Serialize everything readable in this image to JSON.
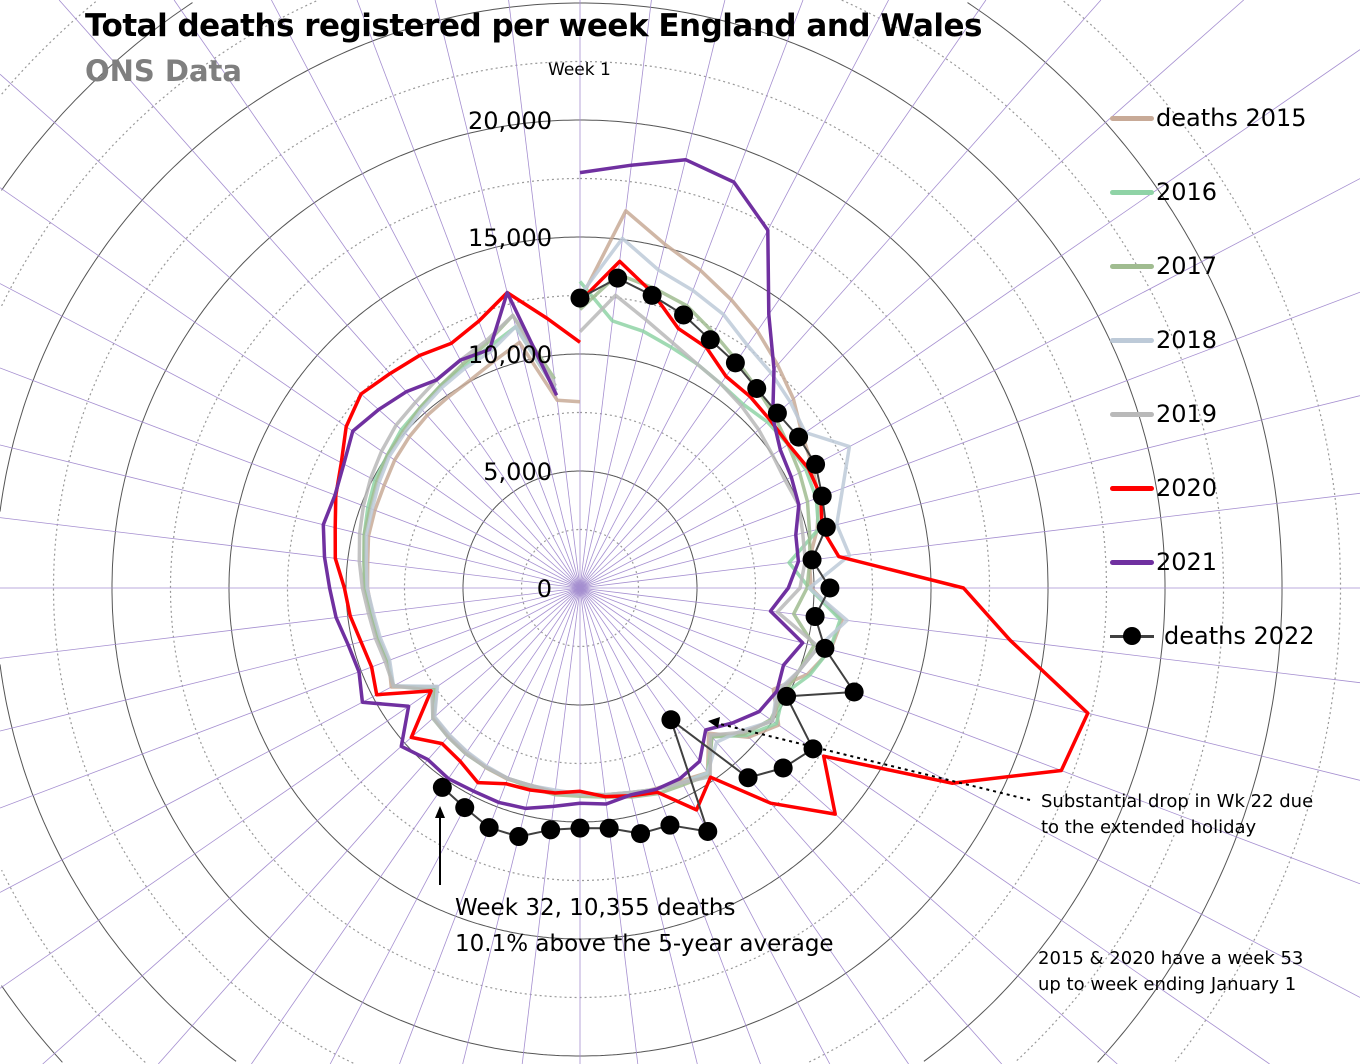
{
  "chart_data": {
    "type": "radar",
    "title": "Total deaths registered per week England and Wales",
    "subtitle": "ONS Data",
    "axis_start_label": "Week 1",
    "radial_ticks": [
      0,
      5000,
      10000,
      15000,
      20000
    ],
    "radial_tick_labels": [
      "0",
      "5,000",
      "10,000",
      "15,000",
      "20,000"
    ],
    "rmax": 20000,
    "categories_count": 52,
    "legend_position": "right",
    "series": [
      {
        "name": "deaths 2015",
        "color": "#c8aa97",
        "marker": false,
        "values": [
          12286,
          16237,
          15134,
          14516,
          13910,
          13345,
          12735,
          12186,
          11539,
          11216,
          10908,
          10439,
          9866,
          9879,
          11281,
          11034,
          10401,
          9329,
          10312,
          9618,
          8296,
          9591,
          9307,
          9163,
          9101,
          8912,
          8765,
          8767,
          8692,
          8741,
          8668,
          8520,
          8426,
          8325,
          7442,
          9106,
          8747,
          8868,
          8942,
          9082,
          9139,
          9311,
          9374,
          9449,
          9622,
          9747,
          9852,
          9918,
          10048,
          10369,
          10811,
          8086,
          7962
        ]
      },
      {
        "name": "2016",
        "color": "#8fd3a6",
        "marker": false,
        "values": [
          13100,
          11500,
          11300,
          11000,
          10800,
          10600,
          10500,
          10700,
          10800,
          10900,
          10800,
          10500,
          9000,
          9800,
          11200,
          11000,
          10500,
          9800,
          10200,
          9500,
          8500,
          9600,
          9400,
          9200,
          9000,
          8900,
          8800,
          8800,
          8700,
          8700,
          8650,
          8600,
          8500,
          8400,
          7600,
          9000,
          8800,
          8900,
          9000,
          9200,
          9300,
          9500,
          9700,
          9900,
          10000,
          10200,
          10300,
          10500,
          10700,
          11000,
          11500,
          8500
        ]
      },
      {
        "name": "2017",
        "color": "#a0bc90",
        "marker": false,
        "values": [
          11900,
          13500,
          13200,
          12900,
          12300,
          11800,
          11400,
          11100,
          10800,
          10600,
          10400,
          10100,
          9900,
          9700,
          9200,
          10300,
          10000,
          9800,
          9900,
          9400,
          8500,
          9700,
          9500,
          9400,
          9200,
          9000,
          8900,
          8900,
          8800,
          8700,
          8650,
          8600,
          8500,
          8350,
          7500,
          9000,
          8800,
          8900,
          9000,
          9200,
          9300,
          9500,
          9600,
          9800,
          10000,
          10100,
          10300,
          10500,
          10800,
          11200,
          12000,
          9000
        ]
      },
      {
        "name": "2018",
        "color": "#bdcad8",
        "marker": false,
        "values": [
          12500,
          15050,
          14000,
          13600,
          13200,
          12600,
          12300,
          12000,
          11700,
          13000,
          12000,
          11300,
          11600,
          9800,
          11500,
          10500,
          10000,
          9500,
          10000,
          9200,
          8800,
          9600,
          9400,
          9200,
          9000,
          8900,
          8800,
          8700,
          8700,
          8700,
          8600,
          8500,
          8400,
          8300,
          7400,
          9000,
          8700,
          8800,
          8900,
          9100,
          9200,
          9400,
          9500,
          9700,
          9900,
          10000,
          10200,
          10400,
          10600,
          10800,
          11500,
          8500
        ]
      },
      {
        "name": "2019",
        "color": "#b9b9b9",
        "marker": false,
        "values": [
          10955,
          12600,
          11800,
          11200,
          10800,
          10600,
          10400,
          10200,
          10000,
          9900,
          10000,
          9800,
          9700,
          9400,
          8500,
          10500,
          10000,
          9600,
          10000,
          9300,
          8400,
          9800,
          9400,
          9200,
          9000,
          8900,
          8800,
          8800,
          8700,
          8700,
          8650,
          8600,
          8500,
          8400,
          7700,
          9000,
          8900,
          9000,
          9100,
          9300,
          9500,
          9700,
          9900,
          10100,
          10300,
          10500,
          10600,
          10800,
          11000,
          11300,
          12000,
          8700
        ]
      },
      {
        "name": "2020",
        "color": "#ff0000",
        "marker": false,
        "values": [
          12254,
          14058,
          12990,
          11856,
          11612,
          10986,
          10944,
          10841,
          10816,
          11019,
          11019,
          10645,
          11141,
          16387,
          18516,
          22351,
          21997,
          17953,
          12657,
          14573,
          12288,
          9824,
          10709,
          9339,
          9140,
          8979,
          8690,
          8823,
          8891,
          8946,
          9392,
          9005,
          8884,
          9631,
          7739,
          9811,
          9523,
          9634,
          9894,
          10069,
          10534,
          10773,
          11159,
          11520,
          12139,
          12505,
          12242,
          12071,
          11813,
          12200,
          13000,
          11600,
          10500
        ]
      },
      {
        "name": "2021",
        "color": "#7030a0",
        "marker": false,
        "values": [
          17750,
          18200,
          18850,
          18550,
          17270,
          14200,
          12500,
          11000,
          10400,
          10200,
          10000,
          9500,
          9400,
          8900,
          8200,
          9800,
          9300,
          9500,
          9300,
          8700,
          8100,
          9000,
          9200,
          9200,
          9100,
          9300,
          9200,
          9400,
          9700,
          9800,
          9800,
          9900,
          9800,
          10200,
          8900,
          10500,
          10100,
          10200,
          10500,
          10700,
          11000,
          11300,
          11200,
          11400,
          11800,
          11500,
          11200,
          10800,
          11000,
          10900,
          13000,
          8300
        ]
      },
      {
        "name": "deaths 2022",
        "color": "#404040",
        "marker": true,
        "values": [
          12390,
          13340,
          12880,
          12480,
          11980,
          11690,
          11390,
          11270,
          11350,
          11370,
          11070,
          10840,
          9990,
          10680,
          10120,
          10780,
          12530,
          9970,
          12100,
          11600,
          10830,
          6840,
          11750,
          10840,
          10810,
          10340,
          10260,
          10410,
          10940,
          10950,
          10600,
          10355
        ]
      }
    ],
    "annotations": {
      "wk22_line1": "Substantial drop in Wk 22 due",
      "wk22_line2": "to the extended holiday",
      "wk32_line1": "Week 32, 10,355 deaths",
      "wk32_line2": "10.1% above the 5-year average",
      "wk53_line1": "2015 & 2020 have a week 53",
      "wk53_line2": "up to week ending January 1"
    }
  }
}
